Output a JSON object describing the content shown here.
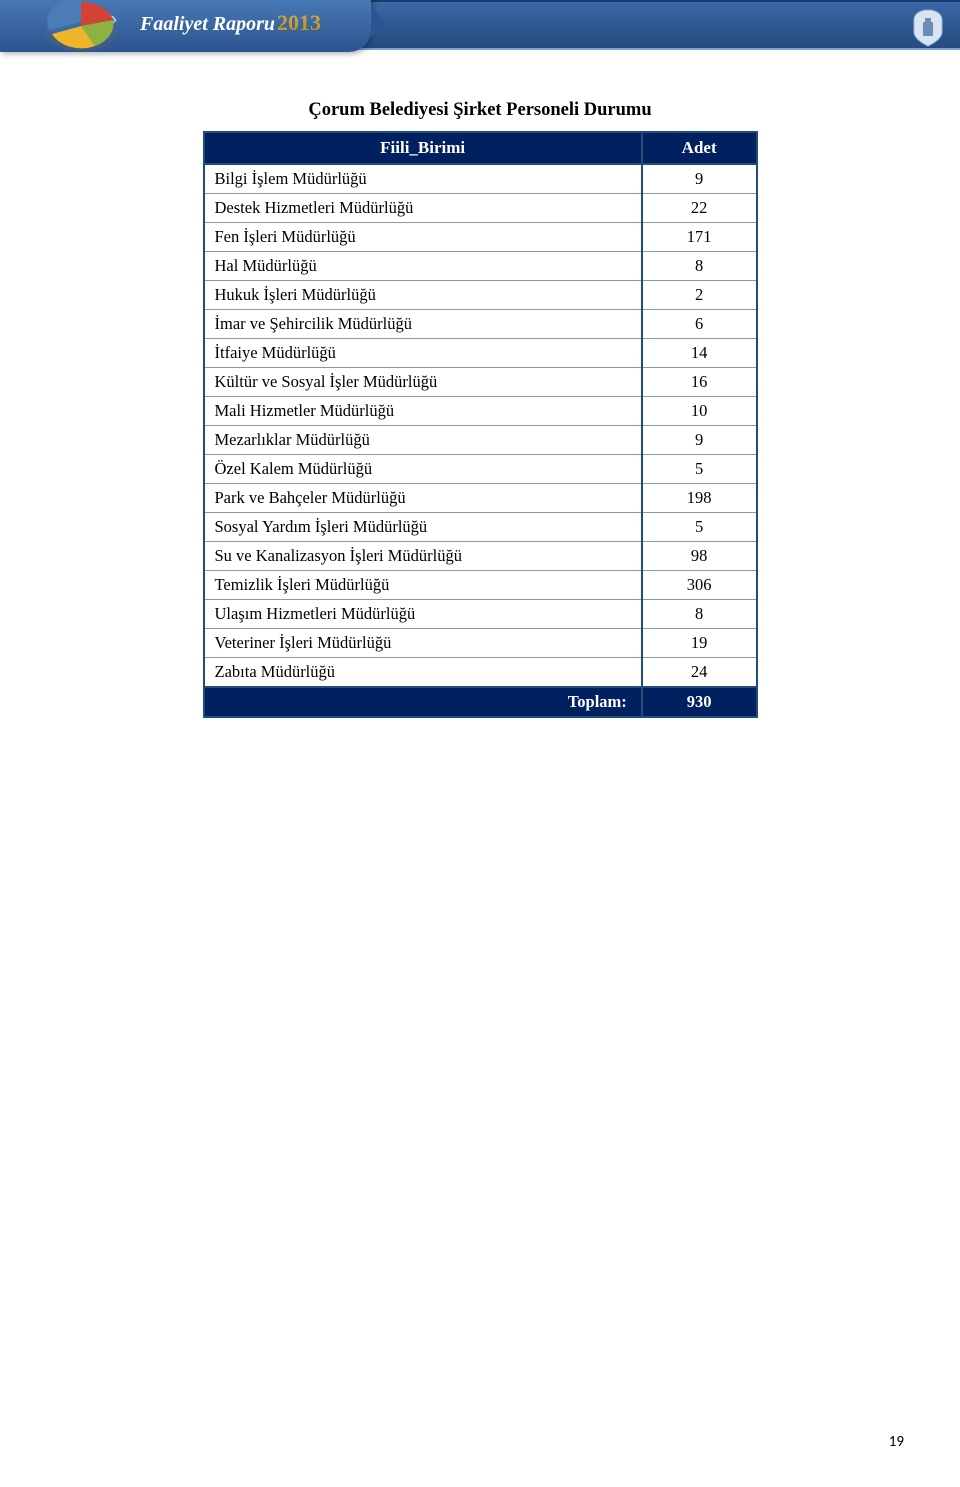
{
  "header": {
    "title_text": "Faaliyet Raporu",
    "year": "2013"
  },
  "table": {
    "title": "Çorum Belediyesi Şirket Personeli Durumu",
    "col_label": "Fiili_Birimi",
    "col_value": "Adet",
    "rows": [
      {
        "label": "Bilgi İşlem Müdürlüğü",
        "value": "9"
      },
      {
        "label": "Destek Hizmetleri Müdürlüğü",
        "value": "22"
      },
      {
        "label": "Fen İşleri Müdürlüğü",
        "value": "171"
      },
      {
        "label": "Hal Müdürlüğü",
        "value": "8"
      },
      {
        "label": "Hukuk İşleri Müdürlüğü",
        "value": "2"
      },
      {
        "label": "İmar ve Şehircilik Müdürlüğü",
        "value": "6"
      },
      {
        "label": "İtfaiye Müdürlüğü",
        "value": "14"
      },
      {
        "label": "Kültür ve Sosyal İşler Müdürlüğü",
        "value": "16"
      },
      {
        "label": "Mali Hizmetler Müdürlüğü",
        "value": "10"
      },
      {
        "label": "Mezarlıklar Müdürlüğü",
        "value": "9"
      },
      {
        "label": "Özel Kalem Müdürlüğü",
        "value": "5"
      },
      {
        "label": "Park ve Bahçeler Müdürlüğü",
        "value": "198"
      },
      {
        "label": "Sosyal Yardım İşleri Müdürlüğü",
        "value": "5"
      },
      {
        "label": "Su ve Kanalizasyon İşleri Müdürlüğü",
        "value": "98"
      },
      {
        "label": "Temizlik İşleri Müdürlüğü",
        "value": "306"
      },
      {
        "label": "Ulaşım Hizmetleri Müdürlüğü",
        "value": "8"
      },
      {
        "label": "Veteriner İşleri Müdürlüğü",
        "value": "19"
      },
      {
        "label": "Zabıta Müdürlüğü",
        "value": "24"
      }
    ],
    "total_label": "Toplam:",
    "total_value": "930"
  },
  "page_number": "19",
  "colors": {
    "header_bg_top": "#3a6aa8",
    "header_bg_bottom": "#274b80",
    "table_header_bg": "#002060",
    "table_border": "#1f4e79",
    "row_border": "#7f9db9",
    "pie_red": "#d14334",
    "pie_green": "#8cb342",
    "pie_blue": "#3a6aa8",
    "pie_yellow": "#f0b428"
  }
}
